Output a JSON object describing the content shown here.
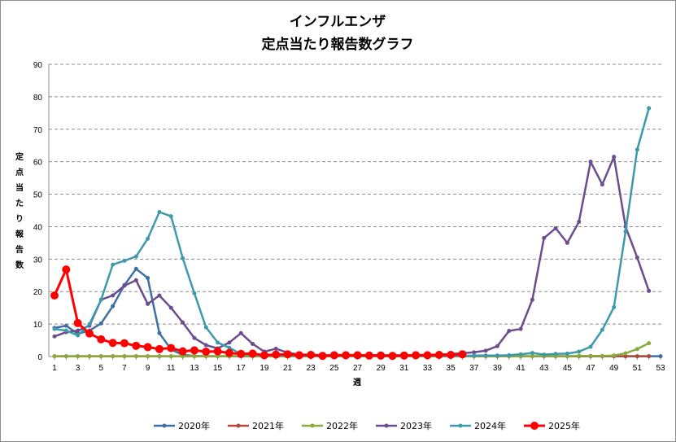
{
  "chart_data": {
    "type": "line",
    "title_lines": [
      "インフルエンザ",
      "定点当たり報告数グラフ"
    ],
    "ylabel_chars": [
      "定",
      "点",
      "当",
      "た",
      "り",
      "報",
      "告",
      "数"
    ],
    "xlabel": "週",
    "ylim": [
      0,
      90
    ],
    "yticks": [
      0,
      10,
      20,
      30,
      40,
      50,
      60,
      70,
      80,
      90
    ],
    "xlim": [
      1,
      53
    ],
    "xticks": [
      1,
      3,
      5,
      7,
      9,
      11,
      13,
      15,
      17,
      19,
      21,
      23,
      25,
      27,
      29,
      31,
      33,
      35,
      37,
      39,
      41,
      43,
      45,
      47,
      49,
      51,
      53
    ],
    "grid": "horizontal-dashed",
    "legend_position": "bottom",
    "series": [
      {
        "name": "2020年",
        "color": "#3d6fa4",
        "values": [
          8.8,
          9.5,
          7.0,
          8.0,
          10.2,
          15.5,
          22.0,
          27.0,
          24.2,
          7.2,
          2.2,
          0.5,
          0.2,
          0.1,
          0.1,
          0.1,
          0.1,
          0.1,
          0.1,
          0.1,
          0.1,
          0.1,
          0.1,
          0.1,
          0.1,
          0.1,
          0.1,
          0.1,
          0.1,
          0.1,
          0.1,
          0.1,
          0.1,
          0.1,
          0.1,
          0.1,
          0.1,
          0.1,
          0.1,
          0.1,
          0.1,
          0.1,
          0.1,
          0.1,
          0.1,
          0.1,
          0.1,
          0.1,
          0.1,
          0.1,
          0.1,
          0.1,
          0.1
        ]
      },
      {
        "name": "2021年",
        "color": "#b04a3c",
        "values": [
          0.1,
          0.1,
          0.1,
          0.1,
          0.1,
          0.1,
          0.1,
          0.1,
          0.1,
          0.1,
          0.1,
          0.1,
          0.1,
          0.1,
          0.1,
          0.1,
          0.1,
          0.1,
          0.1,
          0.1,
          0.1,
          0.1,
          0.1,
          0.1,
          0.1,
          0.1,
          0.1,
          0.1,
          0.1,
          0.1,
          0.1,
          0.1,
          0.1,
          0.1,
          0.1,
          0.1,
          0.1,
          0.1,
          0.1,
          0.1,
          0.1,
          0.1,
          0.1,
          0.1,
          0.1,
          0.1,
          0.1,
          0.1,
          0.1,
          0.1,
          0.1,
          0.1
        ]
      },
      {
        "name": "2022年",
        "color": "#8aab3c",
        "values": [
          0.1,
          0.1,
          0.1,
          0.1,
          0.1,
          0.1,
          0.1,
          0.1,
          0.1,
          0.1,
          0.1,
          0.1,
          0.1,
          0.1,
          0.1,
          0.1,
          0.1,
          0.1,
          0.1,
          0.1,
          0.1,
          0.1,
          0.1,
          0.1,
          0.1,
          0.1,
          0.1,
          0.1,
          0.1,
          0.1,
          0.1,
          0.1,
          0.1,
          0.1,
          0.1,
          0.1,
          0.1,
          0.1,
          0.1,
          0.1,
          0.1,
          0.1,
          0.1,
          0.1,
          0.1,
          0.2,
          0.2,
          0.2,
          0.3,
          1.0,
          2.3,
          4.1
        ]
      },
      {
        "name": "2023年",
        "color": "#6b4c8e",
        "values": [
          6.2,
          7.5,
          8.0,
          9.5,
          17.5,
          18.8,
          21.8,
          23.5,
          16.2,
          18.8,
          15.0,
          10.5,
          5.7,
          3.5,
          2.5,
          4.3,
          7.2,
          3.9,
          1.5,
          2.4,
          1.2,
          0.6,
          0.6,
          0.4,
          0.4,
          0.4,
          0.4,
          0.4,
          0.4,
          0.4,
          0.4,
          0.4,
          0.5,
          0.6,
          0.8,
          1.0,
          1.3,
          1.8,
          3.2,
          7.9,
          8.5,
          17.5,
          36.5,
          39.5,
          35.0,
          41.5,
          60.0,
          53.0,
          61.5,
          40.0,
          30.5,
          20.2
        ]
      },
      {
        "name": "2024年",
        "color": "#3e9aab",
        "values": [
          8.5,
          8.0,
          6.5,
          10.0,
          17.5,
          28.3,
          29.5,
          30.8,
          36.3,
          44.5,
          43.2,
          30.3,
          19.5,
          9.0,
          4.3,
          2.7,
          0.8,
          0.5,
          0.4,
          0.3,
          0.3,
          0.3,
          0.2,
          0.2,
          0.2,
          0.2,
          0.2,
          0.2,
          0.2,
          0.2,
          0.2,
          0.2,
          0.2,
          0.2,
          0.2,
          0.2,
          0.3,
          0.3,
          0.3,
          0.4,
          0.7,
          1.1,
          0.6,
          0.8,
          0.9,
          1.5,
          3.0,
          8.2,
          15.2,
          38.5,
          63.7,
          76.5
        ]
      },
      {
        "name": "2025年",
        "color": "#ff0000",
        "values": [
          18.8,
          26.8,
          10.3,
          7.1,
          5.3,
          4.2,
          4.1,
          3.3,
          2.9,
          2.3,
          2.6,
          1.6,
          1.9,
          1.5,
          1.6,
          1.1,
          0.8,
          0.9,
          0.4,
          0.6,
          0.7,
          0.4,
          0.5,
          0.2,
          0.4,
          0.4,
          0.4,
          0.3,
          0.3,
          0.2,
          0.3,
          0.4,
          0.4,
          0.5,
          0.5,
          0.7
        ]
      }
    ]
  }
}
